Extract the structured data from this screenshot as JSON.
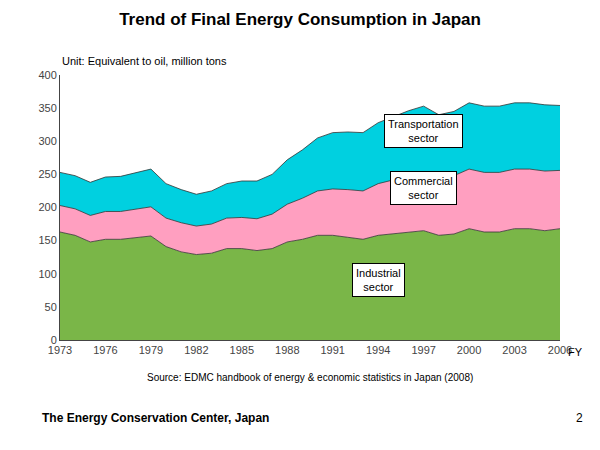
{
  "chart_data": {
    "type": "area",
    "stacked": true,
    "title": "Trend of Final Energy Consumption in Japan",
    "ylabel": "Unit: Equivalent to oil, million tons",
    "xlabel": "FY",
    "x": [
      1973,
      1974,
      1975,
      1976,
      1977,
      1978,
      1979,
      1980,
      1981,
      1982,
      1983,
      1984,
      1985,
      1986,
      1987,
      1988,
      1989,
      1990,
      1991,
      1992,
      1993,
      1994,
      1995,
      1996,
      1997,
      1998,
      1999,
      2000,
      2001,
      2002,
      2003,
      2004,
      2005,
      2006
    ],
    "series": [
      {
        "color": "#7ab648",
        "values": [
          163,
          158,
          148,
          152,
          152,
          155,
          157,
          141,
          133,
          129,
          131,
          138,
          138,
          135,
          138,
          148,
          152,
          158,
          158,
          155,
          152,
          158,
          160,
          163,
          165,
          158,
          160,
          168,
          163,
          163,
          168,
          168,
          165,
          168
        ]
      },
      {
        "color": "#ff9fc0",
        "values": [
          40,
          40,
          40,
          42,
          42,
          43,
          44,
          43,
          44,
          43,
          44,
          46,
          47,
          48,
          52,
          57,
          62,
          67,
          70,
          72,
          73,
          78,
          82,
          85,
          88,
          85,
          88,
          90,
          90,
          90,
          90,
          90,
          90,
          88
        ]
      },
      {
        "color": "#00d0e0",
        "values": [
          50,
          50,
          50,
          52,
          53,
          55,
          57,
          52,
          50,
          48,
          50,
          52,
          55,
          57,
          60,
          67,
          73,
          80,
          85,
          87,
          88,
          92,
          95,
          98,
          100,
          97,
          97,
          100,
          100,
          100,
          100,
          100,
          100,
          98
        ]
      }
    ],
    "xlim": [
      1973,
      2006
    ],
    "xticks": [
      1973,
      1976,
      1979,
      1982,
      1985,
      1988,
      1991,
      1994,
      1997,
      2000,
      2003,
      2006
    ],
    "ylim": [
      0,
      400
    ],
    "yticks": [
      0,
      50,
      100,
      150,
      200,
      250,
      300,
      350,
      400
    ],
    "grid": false,
    "annotations": [
      {
        "text": "Transportation\nsector",
        "x": 1997,
        "y": 315
      },
      {
        "text": "Commercial\nsector",
        "x": 1997,
        "y": 230
      },
      {
        "text": "Industrial\nsector",
        "x": 1994,
        "y": 90
      },
      {
        "text": "Source: EDMC handbook of energy & economic statistics in Japan (2008)"
      },
      {
        "text": "The Energy Conservation Center, Japan"
      },
      {
        "text": "2"
      }
    ]
  }
}
